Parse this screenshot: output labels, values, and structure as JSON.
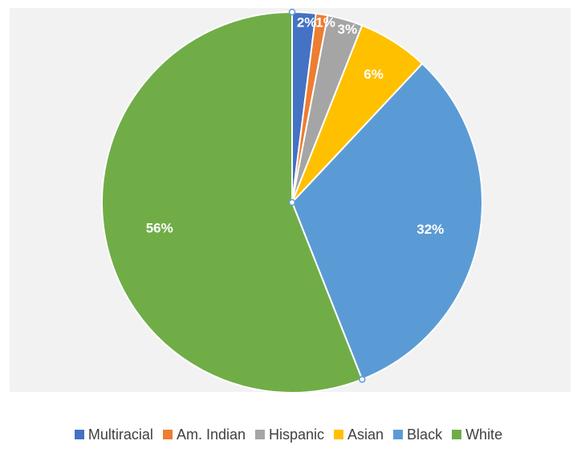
{
  "chart_data": {
    "type": "pie",
    "categories": [
      "Multiracial",
      "Am. Indian",
      "Hispanic",
      "Asian",
      "Black",
      "White"
    ],
    "values": [
      2,
      1,
      3,
      6,
      32,
      56
    ],
    "labels": [
      "2%",
      "1%",
      "3%",
      "6%",
      "32%",
      "56%"
    ],
    "colors": [
      "#4472c4",
      "#ed7d31",
      "#a5a5a5",
      "#ffc000",
      "#5b9bd5",
      "#70ad47"
    ],
    "start_angle_deg": 0,
    "direction": "clockwise",
    "legend_position": "bottom",
    "title": ""
  }
}
